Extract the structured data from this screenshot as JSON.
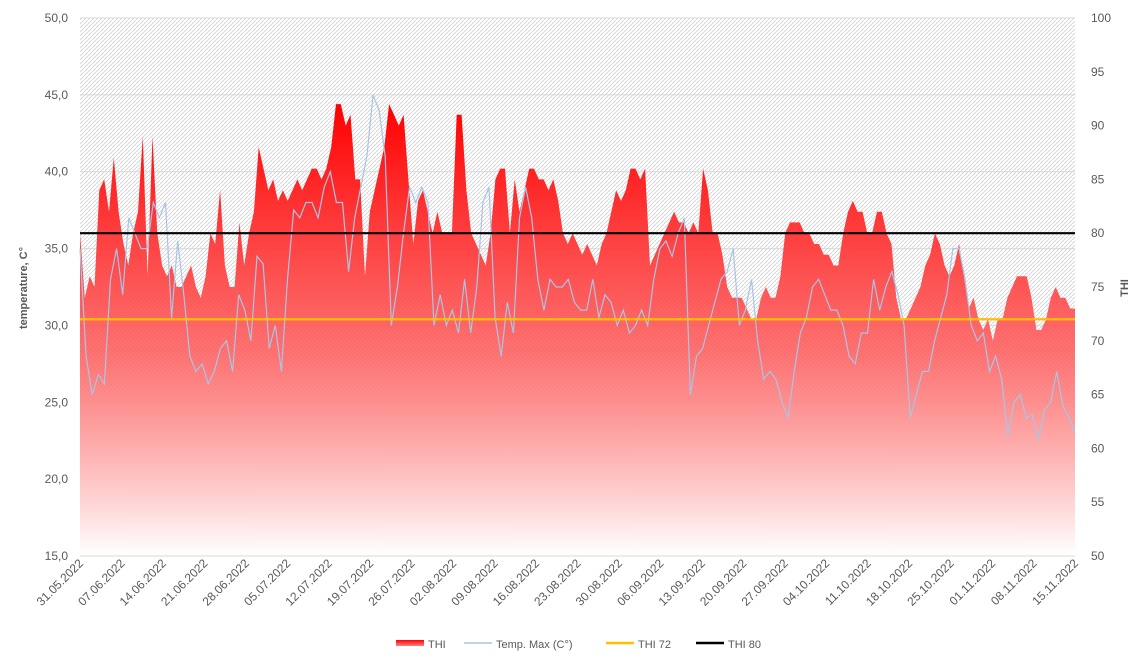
{
  "chart_data": {
    "type": "area",
    "xlabel": "",
    "ylabel": "temperature, C°",
    "y2label": "THI",
    "ylim": [
      15,
      50
    ],
    "y2lim": [
      50,
      100
    ],
    "y_ticks": [
      "15,0",
      "20,0",
      "25,0",
      "30,0",
      "35,0",
      "40,0",
      "45,0",
      "50,0"
    ],
    "y2_ticks": [
      "50",
      "55",
      "60",
      "65",
      "70",
      "75",
      "80",
      "85",
      "90",
      "95",
      "100"
    ],
    "x_ticks": [
      "31.05.2022",
      "07.06.2022",
      "14.06.2022",
      "21.06.2022",
      "28.06.2022",
      "05.07.2022",
      "12.07.2022",
      "19.07.2022",
      "26.07.2022",
      "02.08.2022",
      "09.08.2022",
      "16.08.2022",
      "23.08.2022",
      "30.08.2022",
      "06.09.2022",
      "13.09.2022",
      "20.09.2022",
      "27.09.2022",
      "04.10.2022",
      "11.10.2022",
      "18.10.2022",
      "25.10.2022",
      "01.11.2022",
      "08.11.2022",
      "15.11.2022"
    ],
    "grid": "horizontal",
    "legend_position": "bottom",
    "series": [
      {
        "name": "THI",
        "axis": "right",
        "kind": "area",
        "color": "#ff0000",
        "values": [
          80,
          74,
          76,
          75,
          84,
          85,
          82,
          87,
          82,
          79,
          77,
          80,
          82,
          89,
          76,
          89,
          80,
          77,
          76,
          77,
          75,
          75,
          76,
          77,
          75,
          74,
          76,
          80,
          79,
          84,
          77,
          75,
          75,
          81,
          77,
          80,
          82,
          88,
          86,
          84,
          85,
          83,
          84,
          83,
          84,
          85,
          84,
          85,
          86,
          86,
          85,
          86,
          88,
          92,
          92,
          90,
          91,
          85,
          85,
          76,
          82,
          84,
          86,
          88,
          92,
          91,
          90,
          91,
          85,
          79,
          83,
          84,
          82,
          80,
          82,
          80,
          80,
          80,
          91,
          91,
          84,
          80,
          79,
          78,
          77,
          80,
          85,
          86,
          86,
          80,
          85,
          82,
          84,
          86,
          86,
          85,
          85,
          84,
          85,
          83,
          80,
          79,
          80,
          79,
          78,
          79,
          78,
          77,
          79,
          80,
          82,
          84,
          83,
          84,
          86,
          86,
          85,
          86,
          77,
          78,
          79,
          80,
          81,
          82,
          81,
          81,
          80,
          81,
          80,
          86,
          84,
          80,
          80,
          78,
          75,
          74,
          74,
          74,
          73,
          72,
          72,
          74,
          75,
          74,
          74,
          76,
          80,
          81,
          81,
          81,
          80,
          80,
          79,
          79,
          78,
          78,
          77,
          77,
          80,
          82,
          83,
          82,
          82,
          80,
          80,
          82,
          82,
          80,
          79,
          74,
          72,
          72,
          73,
          74,
          75,
          77,
          78,
          80,
          79,
          77,
          76,
          77,
          79,
          76,
          73,
          74,
          72,
          71,
          72,
          70,
          72,
          72,
          74,
          75,
          76,
          76,
          76,
          74,
          71,
          71,
          72,
          74,
          75,
          74,
          74,
          73,
          73
        ]
      },
      {
        "name": "Temp. Max (C°)",
        "axis": "left",
        "kind": "line",
        "color": "#aac4e6",
        "values": [
          35,
          28,
          25.5,
          26.8,
          26.2,
          33,
          35,
          32,
          37,
          36,
          35,
          35,
          38,
          37,
          38,
          30.5,
          35.5,
          32,
          28,
          27,
          27.5,
          26.2,
          27,
          28.5,
          29,
          27,
          32,
          31,
          29,
          34.5,
          34,
          28.5,
          30,
          27,
          33,
          37.5,
          37,
          38,
          38,
          37,
          39,
          40,
          38,
          38,
          33.5,
          37,
          39,
          41,
          45,
          44,
          41,
          30,
          32.5,
          36,
          39,
          38,
          39,
          38,
          30,
          32,
          30,
          31,
          29.5,
          33,
          29.5,
          32.5,
          38,
          39,
          30.5,
          28,
          31.5,
          29.5,
          37,
          39,
          37,
          33,
          31,
          33,
          32.5,
          32.5,
          33,
          31.5,
          31,
          31,
          33,
          30.5,
          32,
          31.5,
          30,
          31,
          29.5,
          30,
          31,
          30,
          33,
          35,
          35.5,
          34.5,
          36,
          37,
          25.5,
          28,
          28.5,
          30,
          31.5,
          33,
          33.5,
          35,
          30,
          31,
          33,
          29,
          26.5,
          27,
          26.5,
          25,
          24,
          27,
          29.5,
          30.5,
          32.5,
          33,
          32,
          31,
          31,
          30,
          28,
          27.5,
          29.5,
          29.5,
          33,
          31,
          32.5,
          33.5,
          32,
          30,
          24,
          25.5,
          27,
          27,
          29,
          30.5,
          32,
          35,
          35,
          33,
          30,
          29,
          29.5,
          27,
          28,
          26.5,
          22.8,
          25,
          25.5,
          24,
          24.2,
          22.5,
          24.5,
          25,
          27,
          24.8,
          24,
          23
        ]
      },
      {
        "name": "THI 72",
        "axis": "right",
        "kind": "line",
        "color": "#ffc000",
        "constant": 72
      },
      {
        "name": "THI 80",
        "axis": "right",
        "kind": "line",
        "color": "#000000",
        "constant": 80
      }
    ]
  }
}
